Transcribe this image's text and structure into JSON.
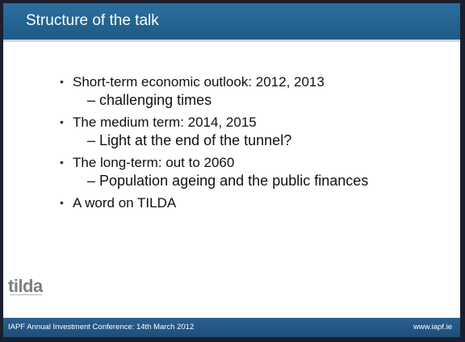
{
  "slide": {
    "title": "Structure of the talk",
    "points": [
      {
        "text": "Short-term economic outlook: 2012, 2013",
        "sub": [
          "– challenging times"
        ]
      },
      {
        "text": "The medium term: 2014, 2015",
        "sub": [
          "– Light at the end of the tunnel?"
        ]
      },
      {
        "text": "The long-term: out to 2060",
        "sub": [
          "– Population ageing and the public finances"
        ]
      },
      {
        "text": "A word on TILDA",
        "sub": []
      }
    ]
  },
  "logo": {
    "text": "tilda"
  },
  "footer": {
    "left": "IAPF Annual Investment Conference: 14th March 2012",
    "right": "www.iapf.ie"
  }
}
